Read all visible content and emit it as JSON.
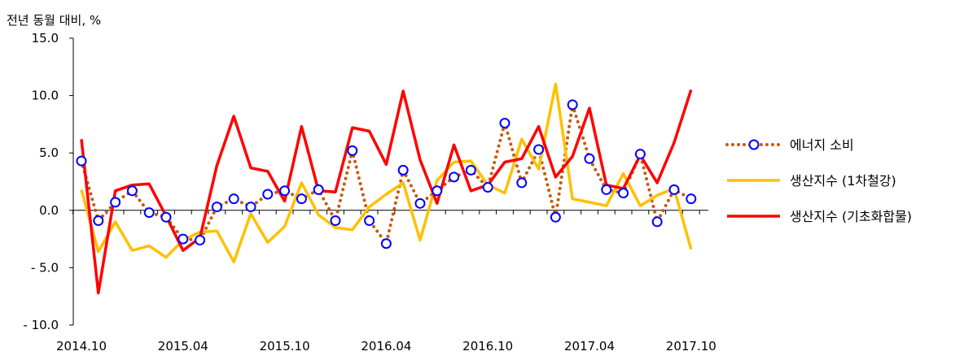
{
  "chart_data": {
    "type": "line",
    "ylabel": "전년 동월 대비, %",
    "ylim": [
      -10,
      15
    ],
    "ytick_labels": [
      "15.0",
      "10.0",
      "5.0",
      "0.0",
      "- 5.0",
      "- 10.0"
    ],
    "ytick_values": [
      15,
      10,
      5,
      0,
      -5,
      -10
    ],
    "x": [
      "2014.10",
      "2014.11",
      "2014.12",
      "2015.01",
      "2015.02",
      "2015.03",
      "2015.04",
      "2015.05",
      "2015.06",
      "2015.07",
      "2015.08",
      "2015.09",
      "2015.10",
      "2015.11",
      "2015.12",
      "2016.01",
      "2016.02",
      "2016.03",
      "2016.04",
      "2016.05",
      "2016.06",
      "2016.07",
      "2016.08",
      "2016.09",
      "2016.10",
      "2016.11",
      "2016.12",
      "2017.01",
      "2017.02",
      "2017.03",
      "2017.04",
      "2017.05",
      "2017.06",
      "2017.07",
      "2017.08",
      "2017.09",
      "2017.10",
      "2017.11"
    ],
    "xtick_labels": [
      "2014.10",
      "2015.04",
      "2015.10",
      "2016.04",
      "2016.10",
      "2017.04",
      "2017.10"
    ],
    "legend_position": "right",
    "series": [
      {
        "name": "에너지 소비",
        "color": "#C55A11",
        "marker_color": "#0000FF",
        "style": "dotted-with-circles",
        "values": [
          4.3,
          -0.9,
          0.7,
          1.7,
          -0.2,
          -0.6,
          -2.5,
          -2.6,
          0.3,
          1.0,
          0.3,
          1.4,
          1.7,
          1.0,
          1.8,
          -0.9,
          5.2,
          -0.9,
          -2.9,
          3.5,
          0.6,
          1.7,
          2.9,
          3.5,
          2.0,
          7.6,
          2.4,
          5.3,
          -0.6,
          9.2,
          4.5,
          1.8,
          1.5,
          4.9,
          -1.0,
          1.8,
          1.0,
          null
        ]
      },
      {
        "name": "생산지수 (1차철강)",
        "color": "#FFC000",
        "style": "solid",
        "values": [
          1.8,
          -3.6,
          -1.0,
          -3.5,
          -3.1,
          -4.1,
          -2.6,
          -1.9,
          -1.8,
          -4.5,
          -0.3,
          -2.8,
          -1.4,
          2.4,
          -0.4,
          -1.5,
          -1.7,
          0.3,
          1.4,
          2.4,
          -2.6,
          2.6,
          4.2,
          4.3,
          2.2,
          1.5,
          6.2,
          3.6,
          11.0,
          1.0,
          0.7,
          0.4,
          3.2,
          0.4,
          1.3,
          1.9,
          -3.4,
          null
        ]
      },
      {
        "name": "생산지수 (기초화합물)",
        "color": "#FF0000",
        "style": "solid",
        "values": [
          6.2,
          -7.2,
          1.7,
          2.2,
          2.3,
          -0.5,
          -3.5,
          -2.4,
          3.9,
          8.2,
          3.7,
          3.4,
          0.8,
          7.3,
          1.7,
          1.6,
          7.2,
          6.9,
          4.0,
          10.4,
          4.4,
          0.6,
          5.7,
          1.7,
          2.2,
          4.2,
          4.5,
          7.3,
          2.9,
          4.7,
          8.9,
          2.2,
          1.9,
          4.8,
          2.4,
          5.9,
          10.5,
          null
        ]
      }
    ]
  }
}
